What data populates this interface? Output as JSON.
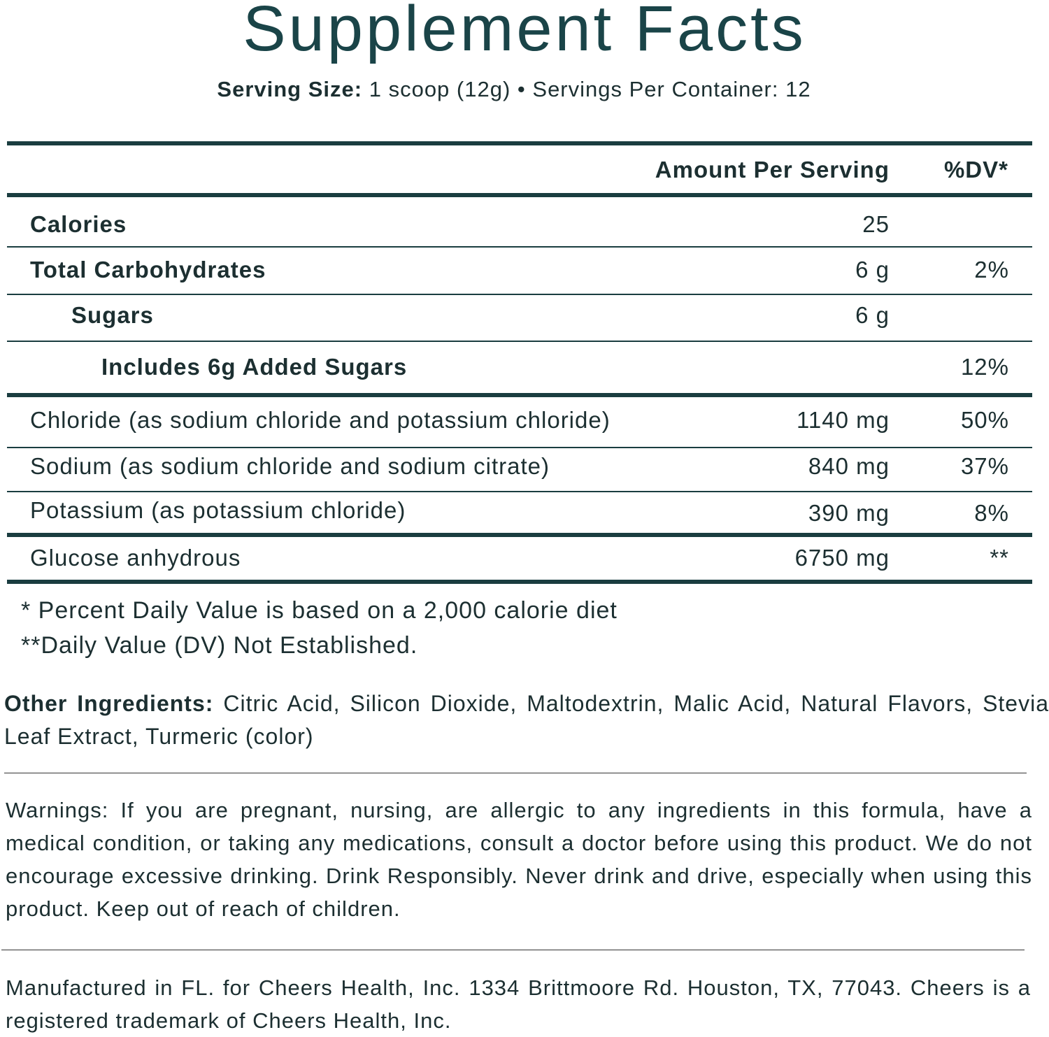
{
  "title": "Supplement Facts",
  "serving": {
    "size_label": "Serving Size:",
    "size_value": "1 scoop (12g)",
    "separator": "•",
    "per_container": "Servings Per Container: 12"
  },
  "header": {
    "amount": "Amount Per Serving",
    "dv": "%DV*"
  },
  "rows": [
    {
      "name": "Calories",
      "amount": "25",
      "dv": ""
    },
    {
      "name": "Total Carbohydrates",
      "amount": "6 g",
      "dv": "2%"
    },
    {
      "name": "Sugars",
      "amount": "6 g",
      "dv": ""
    },
    {
      "name": "Includes 6g Added Sugars",
      "amount": "",
      "dv": "12%"
    },
    {
      "name": "Chloride (as sodium chloride and potassium chloride)",
      "amount": "1140 mg",
      "dv": "50%"
    },
    {
      "name": "Sodium (as sodium chloride and sodium citrate)",
      "amount": "840 mg",
      "dv": "37%"
    },
    {
      "name": "Potassium (as potassium chloride)",
      "amount": "390 mg",
      "dv": "8%"
    },
    {
      "name": "Glucose anhydrous",
      "amount": "6750 mg",
      "dv": "**"
    }
  ],
  "footnotes": [
    "* Percent Daily Value is based on a 2,000 calorie diet",
    "**Daily Value (DV) Not Established."
  ],
  "other_ingredients": {
    "label": "Other Ingredients:",
    "text": "Citric Acid, Silicon Dioxide, Maltodextrin, Malic Acid, Natural Flavors, Stevia Leaf Extract, Turmeric (color)"
  },
  "warnings": "Warnings: If you are pregnant, nursing, are allergic to any ingredients in this formula, have a medical condition, or taking any medications, consult a doctor before using this product. We do not encourage excessive drinking. Drink Responsibly. Never drink and drive, especially when using this product. Keep out of reach of children.",
  "manufacturer": "Manufactured in FL. for Cheers Health, Inc. 1334 Brittmoore Rd. Houston, TX, 77043. Cheers is a registered trademark of Cheers Health, Inc.",
  "colors": {
    "title": "#1a4448",
    "rule": "#1a3d40",
    "text": "#1c2f31"
  }
}
